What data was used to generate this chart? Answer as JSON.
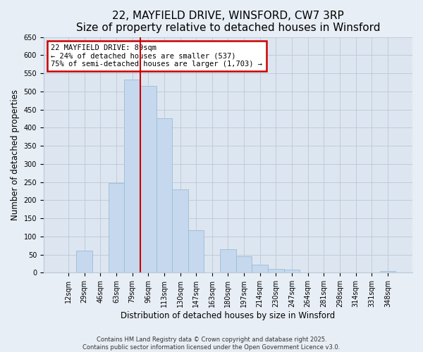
{
  "title": "22, MAYFIELD DRIVE, WINSFORD, CW7 3RP",
  "subtitle": "Size of property relative to detached houses in Winsford",
  "xlabel": "Distribution of detached houses by size in Winsford",
  "ylabel": "Number of detached properties",
  "bar_labels": [
    "12sqm",
    "29sqm",
    "46sqm",
    "63sqm",
    "79sqm",
    "96sqm",
    "113sqm",
    "130sqm",
    "147sqm",
    "163sqm",
    "180sqm",
    "197sqm",
    "214sqm",
    "230sqm",
    "247sqm",
    "264sqm",
    "281sqm",
    "298sqm",
    "314sqm",
    "331sqm",
    "348sqm"
  ],
  "bar_values": [
    0,
    60,
    0,
    248,
    533,
    515,
    427,
    229,
    118,
    0,
    64,
    46,
    22,
    10,
    8,
    0,
    0,
    0,
    0,
    0,
    5
  ],
  "bar_color": "#c5d8ed",
  "bar_edge_color": "#9bbcd8",
  "vline_index": 5,
  "annotation_box_text": "22 MAYFIELD DRIVE: 89sqm\n← 24% of detached houses are smaller (537)\n75% of semi-detached houses are larger (1,703) →",
  "annotation_box_color": "#ffffff",
  "annotation_box_edge_color": "#cc0000",
  "vline_color": "#cc0000",
  "ylim": [
    0,
    650
  ],
  "yticks": [
    0,
    50,
    100,
    150,
    200,
    250,
    300,
    350,
    400,
    450,
    500,
    550,
    600,
    650
  ],
  "footer1": "Contains HM Land Registry data © Crown copyright and database right 2025.",
  "footer2": "Contains public sector information licensed under the Open Government Licence v3.0.",
  "bg_color": "#e8eef5",
  "plot_bg_color": "#dde6f0",
  "title_fontsize": 11,
  "subtitle_fontsize": 9.5,
  "axis_label_fontsize": 8.5,
  "tick_fontsize": 7,
  "footer_fontsize": 6,
  "annotation_fontsize": 7.5
}
